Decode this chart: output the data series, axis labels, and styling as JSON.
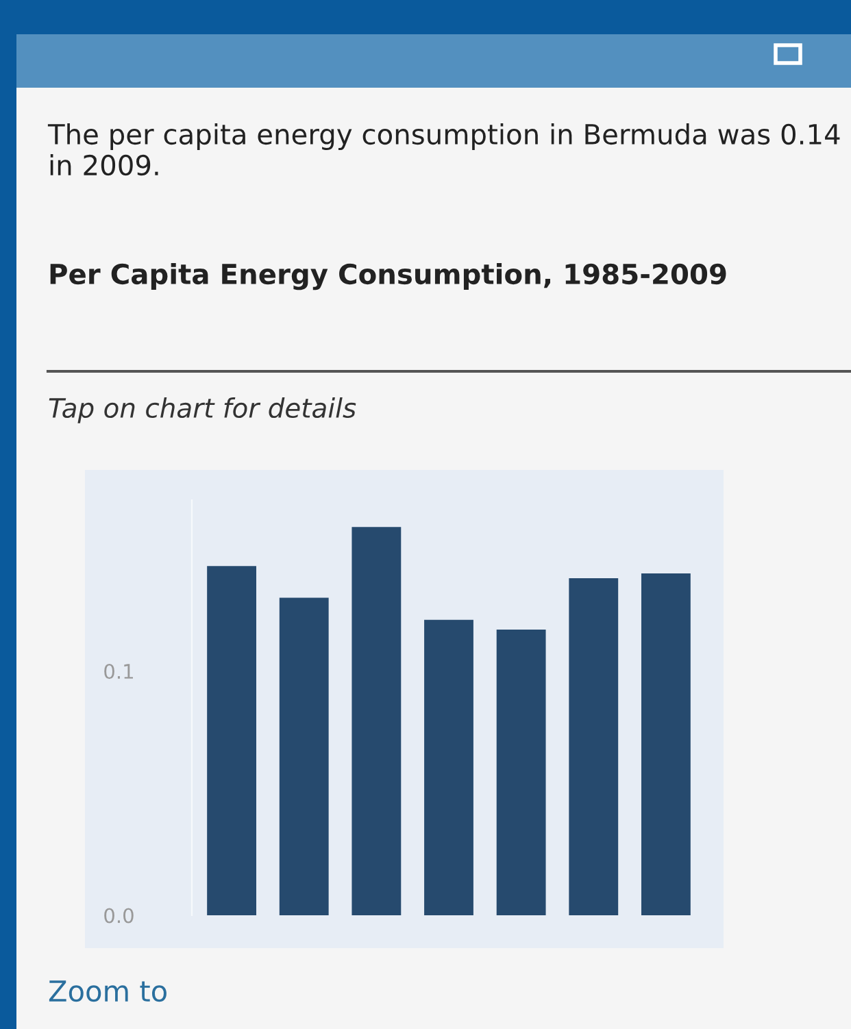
{
  "chart_data": {
    "type": "bar",
    "title": "Per Capita Energy Consumption, 1985-2009",
    "annotations": [
      "The per capita energy consumption in Bermuda was 0.14 in 2009.",
      "Tap on chart for details",
      "Zoom to"
    ],
    "categories": [
      null,
      null,
      null,
      null,
      null,
      null,
      null
    ],
    "values": [
      0.143,
      0.13,
      0.159,
      0.121,
      0.117,
      0.138,
      0.14
    ],
    "color": "#264a6e",
    "ylim": [
      0,
      0.17
    ],
    "yticks": [
      {
        "value": 0,
        "label": "0.0"
      },
      0.1
    ],
    "tick_labels": "y"
  }
}
